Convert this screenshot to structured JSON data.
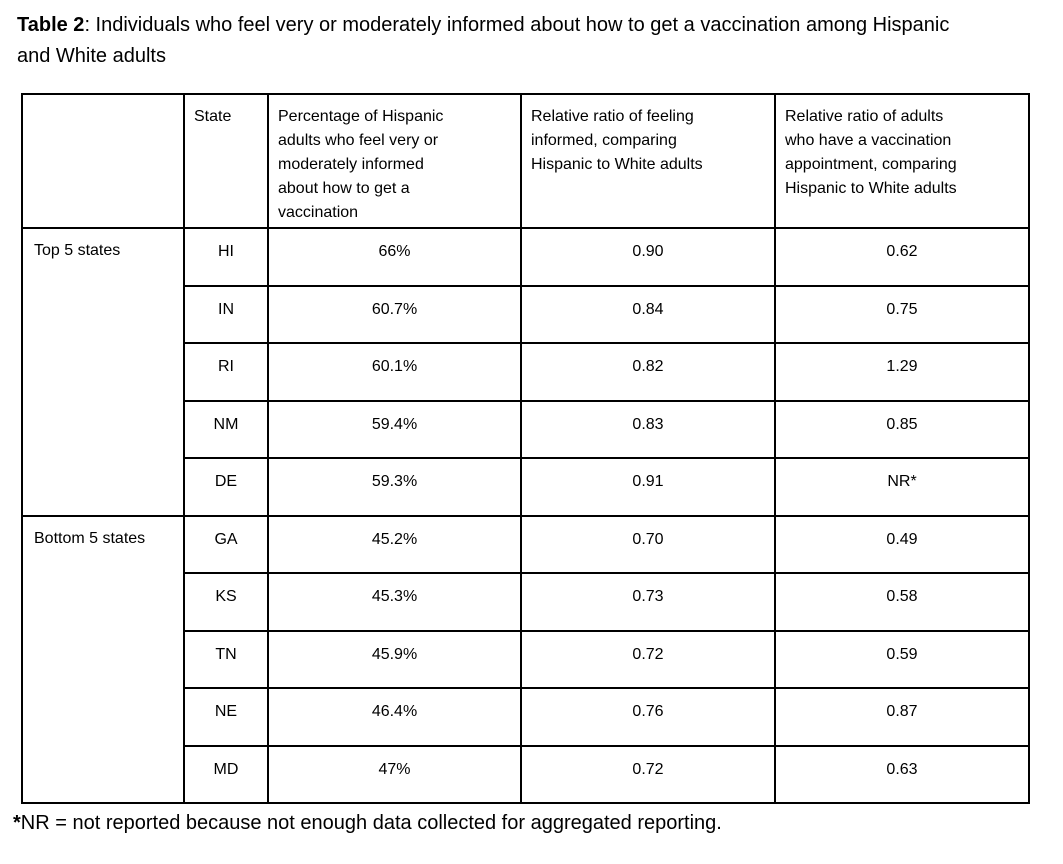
{
  "title": {
    "label": "Table 2",
    "rest": ": Individuals who feel very or moderately informed about how to get a vaccination among Hispanic and White adults"
  },
  "table": {
    "headers": {
      "group": "",
      "state": "State",
      "pct": "Percentage of Hispanic\nadults who feel very or\nmoderately informed\nabout how to get a\nvaccination",
      "ratio_informed": "Relative ratio of feeling\ninformed, comparing\nHispanic to White adults",
      "ratio_appointment": "Relative ratio of adults\nwho have a vaccination\nappointment, comparing\nHispanic to White adults"
    },
    "groups": [
      {
        "label": "Top 5 states",
        "rows": [
          {
            "state": "HI",
            "pct": "66%",
            "ratio_informed": "0.90",
            "ratio_appointment": "0.62"
          },
          {
            "state": "IN",
            "pct": "60.7%",
            "ratio_informed": "0.84",
            "ratio_appointment": "0.75"
          },
          {
            "state": "RI",
            "pct": "60.1%",
            "ratio_informed": "0.82",
            "ratio_appointment": "1.29"
          },
          {
            "state": "NM",
            "pct": "59.4%",
            "ratio_informed": "0.83",
            "ratio_appointment": "0.85"
          },
          {
            "state": "DE",
            "pct": "59.3%",
            "ratio_informed": "0.91",
            "ratio_appointment": "NR*"
          }
        ]
      },
      {
        "label": "Bottom 5 states",
        "rows": [
          {
            "state": "GA",
            "pct": "45.2%",
            "ratio_informed": "0.70",
            "ratio_appointment": "0.49"
          },
          {
            "state": "KS",
            "pct": "45.3%",
            "ratio_informed": "0.73",
            "ratio_appointment": "0.58"
          },
          {
            "state": "TN",
            "pct": "45.9%",
            "ratio_informed": "0.72",
            "ratio_appointment": "0.59"
          },
          {
            "state": "NE",
            "pct": "46.4%",
            "ratio_informed": "0.76",
            "ratio_appointment": "0.87"
          },
          {
            "state": "MD",
            "pct": "47%",
            "ratio_informed": "0.72",
            "ratio_appointment": "0.63"
          }
        ]
      }
    ]
  },
  "footnote": {
    "marker": "*",
    "text": "NR = not reported because not enough data collected for aggregated reporting."
  },
  "colors": {
    "text": "#000000",
    "border": "#000000",
    "background": "#ffffff"
  }
}
